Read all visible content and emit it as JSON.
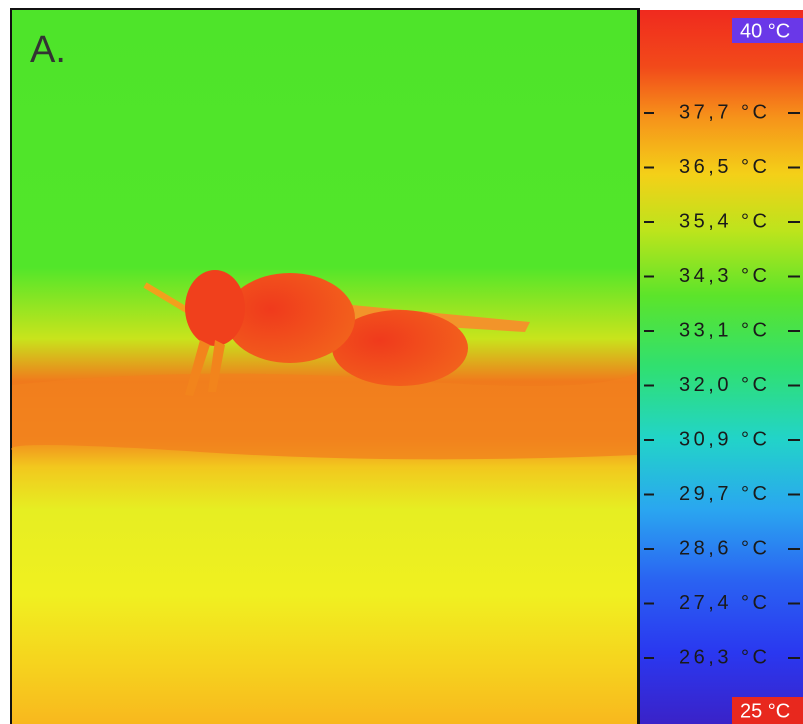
{
  "panel_label": "A.",
  "scale": {
    "max_label": "40 °C",
    "min_label": "25 °C",
    "tick_labels": [
      "37,7 °C",
      "36,5 °C",
      "35,4 °C",
      "34,3 °C",
      "33,1 °C",
      "32,0 °C",
      "30,9 °C",
      "29,7 °C",
      "28,6 °C",
      "27,4 °C",
      "26,3 °C"
    ]
  }
}
